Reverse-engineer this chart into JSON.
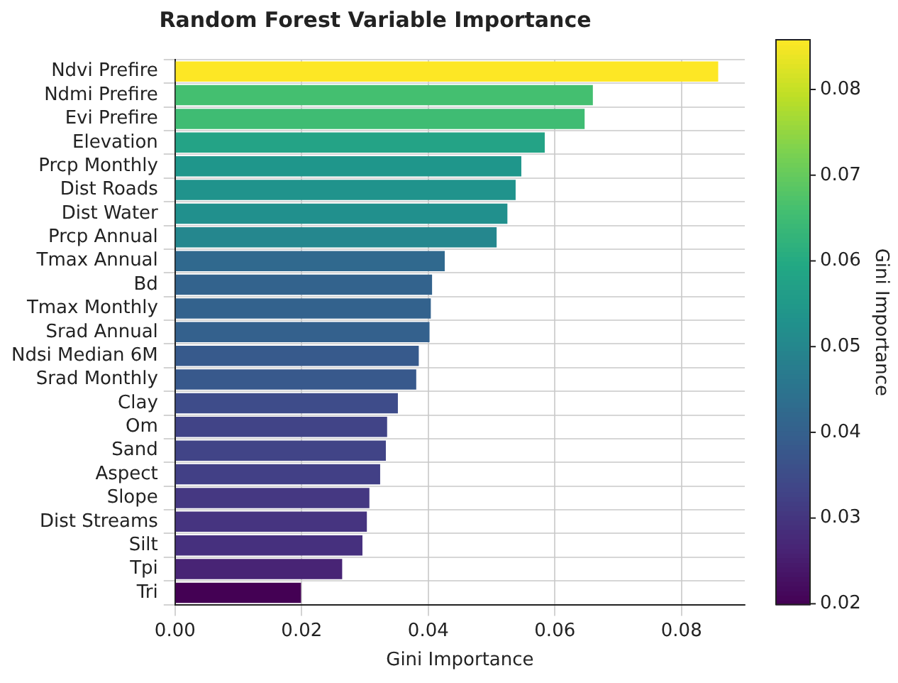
{
  "chart_data": {
    "type": "bar",
    "orientation": "horizontal",
    "title": "Random Forest Variable Importance",
    "xlabel": "Gini Importance",
    "clabel": "Gini Importance",
    "categories": [
      "Ndvi Prefire",
      "Ndmi Prefire",
      "Evi Prefire",
      "Elevation",
      "Prcp Monthly",
      "Dist Roads",
      "Dist Water",
      "Prcp Annual",
      "Tmax Annual",
      "Bd",
      "Tmax Monthly",
      "Srad Annual",
      "Ndsi Median 6M",
      "Srad Monthly",
      "Clay",
      "Om",
      "Sand",
      "Aspect",
      "Slope",
      "Dist Streams",
      "Silt",
      "Tpi",
      "Tri"
    ],
    "values": [
      0.0858,
      0.066,
      0.0647,
      0.0584,
      0.0547,
      0.0538,
      0.0525,
      0.0508,
      0.0426,
      0.0406,
      0.0404,
      0.0402,
      0.0385,
      0.0381,
      0.0352,
      0.0335,
      0.0333,
      0.0324,
      0.0307,
      0.0303,
      0.0296,
      0.0264,
      0.0199
    ],
    "colors": [
      "#fde725",
      "#44bf70",
      "#3fbc73",
      "#24a386",
      "#1f968b",
      "#20938c",
      "#21908d",
      "#25878e",
      "#30698e",
      "#33638d",
      "#33628d",
      "#34618d",
      "#375a8c",
      "#38598c",
      "#3e4c8a",
      "#414487",
      "#414487",
      "#424086",
      "#453882",
      "#463480",
      "#46307e",
      "#482475",
      "#440154"
    ],
    "xlim": [
      0,
      0.09
    ],
    "xticks": [
      {
        "value": 0,
        "label": "0.00"
      },
      {
        "value": 0.02,
        "label": "0.02"
      },
      {
        "value": 0.04,
        "label": "0.04"
      },
      {
        "value": 0.06,
        "label": "0.06"
      },
      {
        "value": 0.08,
        "label": "0.08"
      }
    ],
    "clim": [
      0.0199,
      0.0858
    ],
    "cticks": [
      0.02,
      0.03,
      0.04,
      0.05,
      0.06,
      0.07,
      0.08
    ],
    "grid": true,
    "legend": false
  }
}
